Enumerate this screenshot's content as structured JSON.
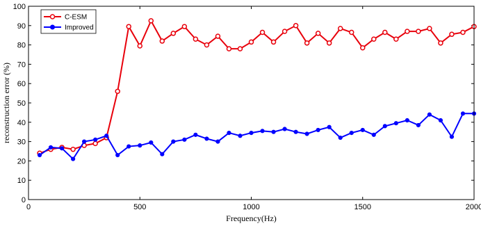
{
  "chart_data": {
    "type": "line",
    "xlabel": "Frequency(Hz)",
    "ylabel": "reconstruction error (%)",
    "xlim": [
      0,
      2000
    ],
    "ylim": [
      0,
      100
    ],
    "xticks": [
      0,
      500,
      1000,
      1500,
      2000
    ],
    "yticks": [
      0,
      10,
      20,
      30,
      40,
      50,
      60,
      70,
      80,
      90,
      100
    ],
    "grid": false,
    "legend_position": "top-left",
    "x": [
      50,
      100,
      150,
      200,
      250,
      300,
      350,
      400,
      450,
      500,
      550,
      600,
      650,
      700,
      750,
      800,
      850,
      900,
      950,
      1000,
      1050,
      1100,
      1150,
      1200,
      1250,
      1300,
      1350,
      1400,
      1450,
      1500,
      1550,
      1600,
      1650,
      1700,
      1750,
      1800,
      1850,
      1900,
      1950,
      2000
    ],
    "series": [
      {
        "name": "C-ESM",
        "color": "#e8000b",
        "marker": "open-circle",
        "values": [
          24,
          26,
          27,
          26,
          28,
          29,
          32,
          56,
          89.5,
          79.5,
          92.5,
          82,
          86,
          89.5,
          83,
          80,
          84.5,
          78,
          78,
          81.5,
          86.5,
          81.5,
          87,
          90,
          81,
          86,
          81,
          88.5,
          86.5,
          78.5,
          83,
          86.5,
          83,
          87,
          87,
          88.5,
          81,
          85.5,
          86.5,
          89.5
        ]
      },
      {
        "name": "Improved",
        "color": "#0000ff",
        "marker": "filled-circle",
        "values": [
          23,
          27,
          26.5,
          21,
          30,
          31,
          33,
          23,
          27.5,
          28,
          29.5,
          23.5,
          30,
          31,
          33.5,
          31.5,
          30,
          34.5,
          33,
          34.5,
          35.5,
          35,
          36.5,
          35,
          34,
          36,
          37.5,
          32,
          34.5,
          36,
          33.5,
          38,
          39.5,
          41,
          38.5,
          44,
          41,
          32.5,
          44.5,
          44.5
        ]
      }
    ]
  }
}
